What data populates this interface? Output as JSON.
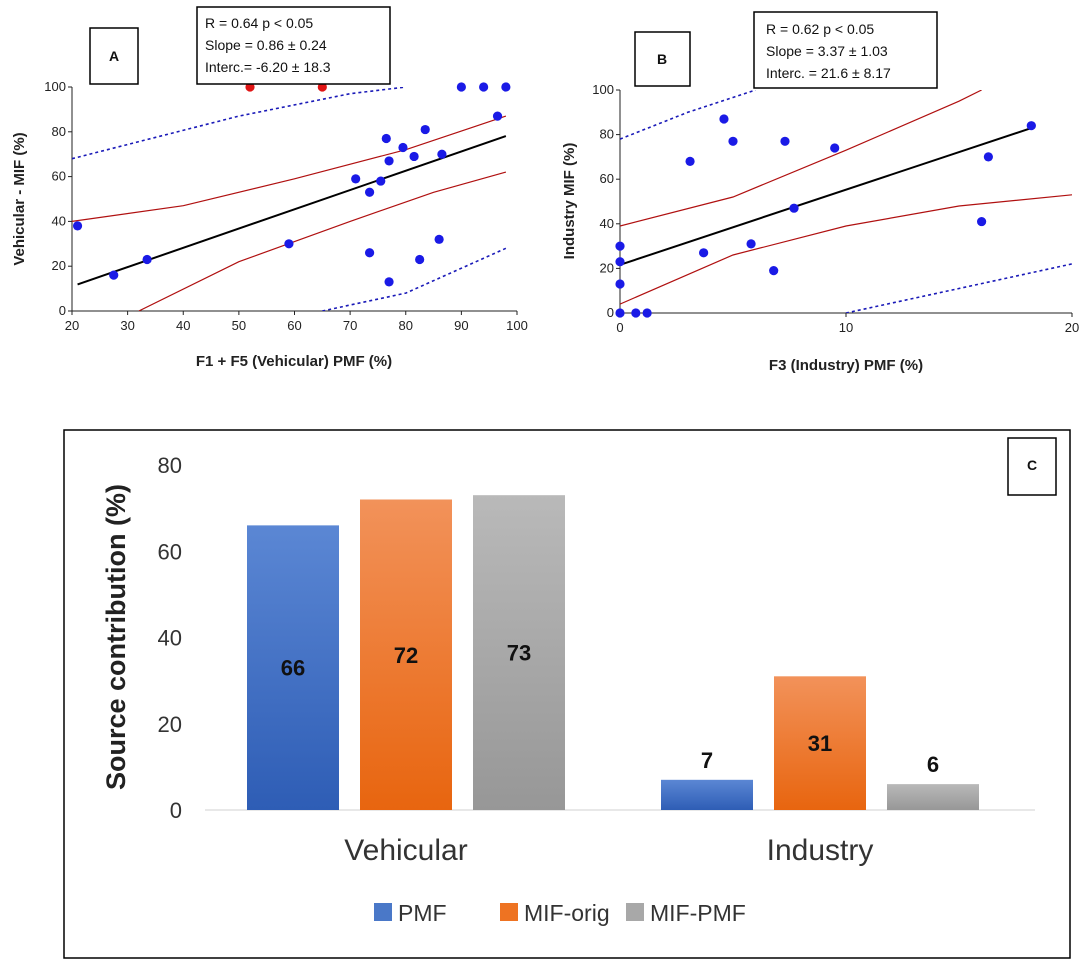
{
  "panels": {
    "A": {
      "panel_label": "A",
      "stats": [
        "R = 0.64    p < 0.05",
        "Slope = 0.86 ± 0.24",
        "Interc.= -6.20 ± 18.3"
      ]
    },
    "B": {
      "panel_label": "B",
      "stats": [
        "R = 0.62  p < 0.05",
        "Slope = 3.37 ± 1.03",
        "Interc. = 21.6 ± 8.17"
      ]
    },
    "C": {
      "panel_label": "C"
    }
  },
  "colors": {
    "point_blue": "#1a1ae6",
    "point_red": "#e01414",
    "fit_line": "#000000",
    "conf_band": "#b01010",
    "pred_band": "#1a1ab8",
    "pmf": "#4a78c8",
    "mif_orig": "#ee7322",
    "mif_pmf": "#a8a8a8"
  },
  "chart_data": [
    {
      "id": "A",
      "type": "scatter",
      "xlabel": "F1 + F5 (Vehicular) PMF (%)",
      "ylabel": "Vehicular - MIF (%)",
      "xlim": [
        20,
        100
      ],
      "ylim": [
        0,
        100
      ],
      "xticks": [
        20,
        30,
        40,
        50,
        60,
        70,
        80,
        90,
        100
      ],
      "yticks": [
        0,
        20,
        40,
        60,
        80,
        100
      ],
      "points": [
        [
          21,
          38
        ],
        [
          27.5,
          16
        ],
        [
          33.5,
          23
        ],
        [
          59,
          30
        ],
        [
          71,
          59
        ],
        [
          73.5,
          53
        ],
        [
          73.5,
          26
        ],
        [
          75.5,
          58
        ],
        [
          76.5,
          77
        ],
        [
          77,
          67
        ],
        [
          77,
          13
        ],
        [
          79.5,
          73
        ],
        [
          81.5,
          69
        ],
        [
          82.5,
          23
        ],
        [
          83.5,
          81
        ],
        [
          86,
          32
        ],
        [
          86.5,
          70
        ],
        [
          90,
          100
        ],
        [
          94,
          100
        ],
        [
          96.5,
          87
        ],
        [
          98,
          100
        ]
      ],
      "red_points": [
        [
          52,
          100
        ],
        [
          65,
          100
        ]
      ],
      "fit": {
        "slope": 0.86,
        "intercept": -6.2
      },
      "confidence_band": {
        "upper": [
          [
            20,
            40
          ],
          [
            40,
            47
          ],
          [
            60,
            59
          ],
          [
            80,
            72
          ],
          [
            98,
            87
          ]
        ],
        "lower": [
          [
            32,
            0
          ],
          [
            50,
            22
          ],
          [
            70,
            40
          ],
          [
            85,
            53
          ],
          [
            98,
            62
          ]
        ]
      },
      "prediction_band": {
        "upper": [
          [
            20,
            68
          ],
          [
            50,
            87
          ],
          [
            70,
            97
          ],
          [
            80,
            100
          ]
        ],
        "lower": [
          [
            65,
            0
          ],
          [
            80,
            8
          ],
          [
            98,
            28
          ]
        ]
      }
    },
    {
      "id": "B",
      "type": "scatter",
      "xlabel": "F3 (Industry) PMF (%)",
      "ylabel": "Industry MIF (%)",
      "xlim": [
        0,
        20
      ],
      "ylim": [
        0,
        100
      ],
      "xticks": [
        0,
        10,
        20
      ],
      "yticks": [
        0,
        20,
        40,
        60,
        80,
        100
      ],
      "points": [
        [
          0,
          30
        ],
        [
          0,
          23
        ],
        [
          0,
          13
        ],
        [
          0,
          0
        ],
        [
          0.7,
          0
        ],
        [
          1.2,
          0
        ],
        [
          3.1,
          68
        ],
        [
          3.7,
          27
        ],
        [
          4.6,
          87
        ],
        [
          5,
          77
        ],
        [
          5.8,
          31
        ],
        [
          6.8,
          19
        ],
        [
          7.3,
          77
        ],
        [
          7.7,
          47
        ],
        [
          9.5,
          74
        ],
        [
          16,
          41
        ],
        [
          16.3,
          70
        ],
        [
          18.2,
          84
        ]
      ],
      "fit": {
        "slope": 3.37,
        "intercept": 21.6
      },
      "confidence_band": {
        "upper": [
          [
            0,
            39
          ],
          [
            5,
            52
          ],
          [
            10,
            73
          ],
          [
            15,
            95
          ],
          [
            16,
            100
          ]
        ],
        "lower": [
          [
            0,
            4
          ],
          [
            5,
            26
          ],
          [
            10,
            39
          ],
          [
            15,
            48
          ],
          [
            20,
            53
          ]
        ]
      },
      "prediction_band": {
        "upper": [
          [
            0,
            78
          ],
          [
            3,
            90
          ],
          [
            6,
            100
          ]
        ],
        "lower": [
          [
            10,
            0
          ],
          [
            15,
            11
          ],
          [
            20,
            22
          ]
        ]
      }
    },
    {
      "id": "C",
      "type": "bar",
      "ylabel": "Source contribution  (%)",
      "ylim": [
        0,
        80
      ],
      "yticks": [
        0,
        20,
        40,
        60,
        80
      ],
      "categories": [
        "Vehicular",
        "Industry"
      ],
      "series": [
        {
          "name": "PMF",
          "values": [
            66,
            7
          ],
          "labels": [
            "66",
            "7"
          ]
        },
        {
          "name": "MIF-orig",
          "values": [
            72,
            31
          ],
          "labels": [
            "72",
            "31"
          ]
        },
        {
          "name": "MIF-PMF",
          "values": [
            73,
            6
          ],
          "labels": [
            "73",
            "6"
          ]
        }
      ],
      "legend_position": "bottom"
    }
  ]
}
